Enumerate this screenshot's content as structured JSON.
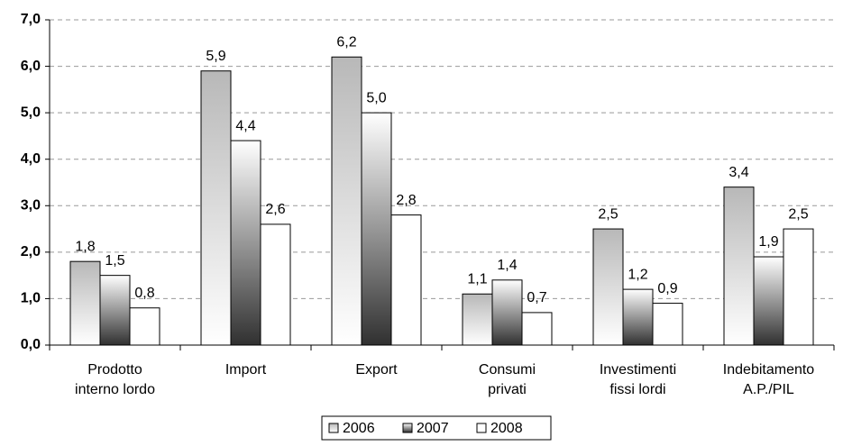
{
  "chart_data": {
    "type": "bar",
    "categories": [
      "Prodotto\ninterno lordo",
      "Import",
      "Export",
      "Consumi\nprivati",
      "Investimenti\nfissi lordi",
      "Indebitamento\nA.P./PIL"
    ],
    "series": [
      {
        "name": "2006",
        "color": "#b8b8b8",
        "values": [
          1.8,
          5.9,
          6.2,
          1.1,
          2.5,
          3.4
        ],
        "value_labels": [
          "1,8",
          "5,9",
          "6,2",
          "1,1",
          "2,5",
          "3,4"
        ]
      },
      {
        "name": "2007",
        "color": "#303030",
        "values": [
          1.5,
          4.4,
          5.0,
          1.4,
          1.2,
          1.9
        ],
        "value_labels": [
          "1,5",
          "4,4",
          "5,0",
          "1,4",
          "1,2",
          "1,9"
        ]
      },
      {
        "name": "2008",
        "color": "#ffffff",
        "values": [
          0.8,
          2.6,
          2.8,
          0.7,
          0.9,
          2.5
        ],
        "value_labels": [
          "0,8",
          "2,6",
          "2,8",
          "0,7",
          "0,9",
          "2,5"
        ]
      }
    ],
    "ylim": [
      0,
      7
    ],
    "yticks": [
      {
        "value": 0,
        "label": "0,0"
      },
      {
        "value": 1,
        "label": "1,0"
      },
      {
        "value": 2,
        "label": "2,0"
      },
      {
        "value": 3,
        "label": "3,0"
      },
      {
        "value": 4,
        "label": "4,0"
      },
      {
        "value": 5,
        "label": "5,0"
      },
      {
        "value": 6,
        "label": "6,0"
      },
      {
        "value": 7,
        "label": "7,0"
      }
    ],
    "grid": true,
    "legend": "bottom"
  }
}
